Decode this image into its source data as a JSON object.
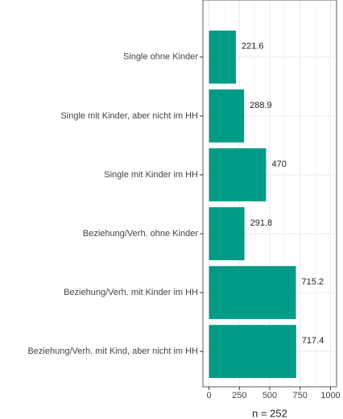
{
  "chart_data": {
    "type": "bar",
    "orientation": "horizontal",
    "categories": [
      "Single ohne Kinder",
      "Single mit Kinder, aber nicht im HH",
      "Single mit Kinder im HH",
      "Beziehung/Verh. ohne Kinder",
      "Beziehung/Verh. mit Kinder im HH",
      "Beziehung/Verh. mit Kind, aber nicht im HH"
    ],
    "values": [
      221.6,
      288.9,
      470,
      291.8,
      715.2,
      717.4
    ],
    "color": "#009b86",
    "x_label": "n = 252",
    "xlim": [
      -50,
      1050
    ],
    "xticks": [
      0,
      250,
      500,
      750,
      1000
    ],
    "grid": true
  }
}
